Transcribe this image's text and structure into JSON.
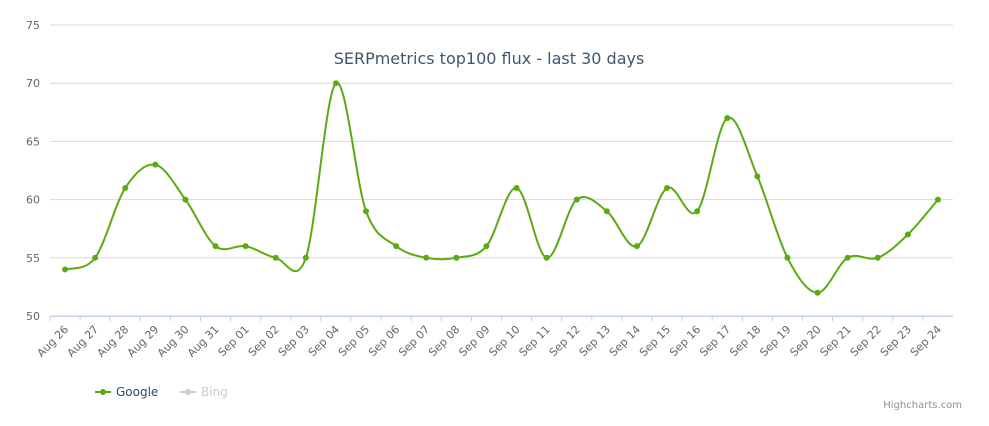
{
  "chart_data": {
    "type": "spline",
    "title": "SERPmetrics top100 flux - last 30 days",
    "categories": [
      "Aug 26",
      "Aug 27",
      "Aug 28",
      "Aug 29",
      "Aug 30",
      "Aug 31",
      "Sep 01",
      "Sep 02",
      "Sep 03",
      "Sep 04",
      "Sep 05",
      "Sep 06",
      "Sep 07",
      "Sep 08",
      "Sep 09",
      "Sep 10",
      "Sep 11",
      "Sep 12",
      "Sep 13",
      "Sep 14",
      "Sep 15",
      "Sep 16",
      "Sep 17",
      "Sep 18",
      "Sep 19",
      "Sep 20",
      "Sep 21",
      "Sep 22",
      "Sep 23",
      "Sep 24"
    ],
    "series": [
      {
        "name": "Google",
        "color": "#5aab13",
        "visible": true,
        "values": [
          54,
          55,
          61,
          63,
          60,
          56,
          56,
          55,
          55,
          70,
          59,
          56,
          55,
          55,
          56,
          61,
          55,
          60,
          59,
          56,
          61,
          59,
          67,
          62,
          55,
          52,
          55,
          55,
          57,
          60
        ]
      },
      {
        "name": "Bing",
        "color": "#cccccc",
        "visible": false,
        "values": [
          null,
          null,
          null,
          null,
          null,
          null,
          null,
          null,
          null,
          null,
          null,
          null,
          null,
          null,
          null,
          null,
          null,
          null,
          null,
          null,
          null,
          null,
          null,
          null,
          null,
          null,
          null,
          null,
          null,
          null
        ]
      }
    ],
    "ylim": [
      50,
      75
    ],
    "yticks": [
      50,
      55,
      60,
      65,
      70,
      75
    ],
    "grid": true,
    "credits": "Highcharts.com"
  }
}
